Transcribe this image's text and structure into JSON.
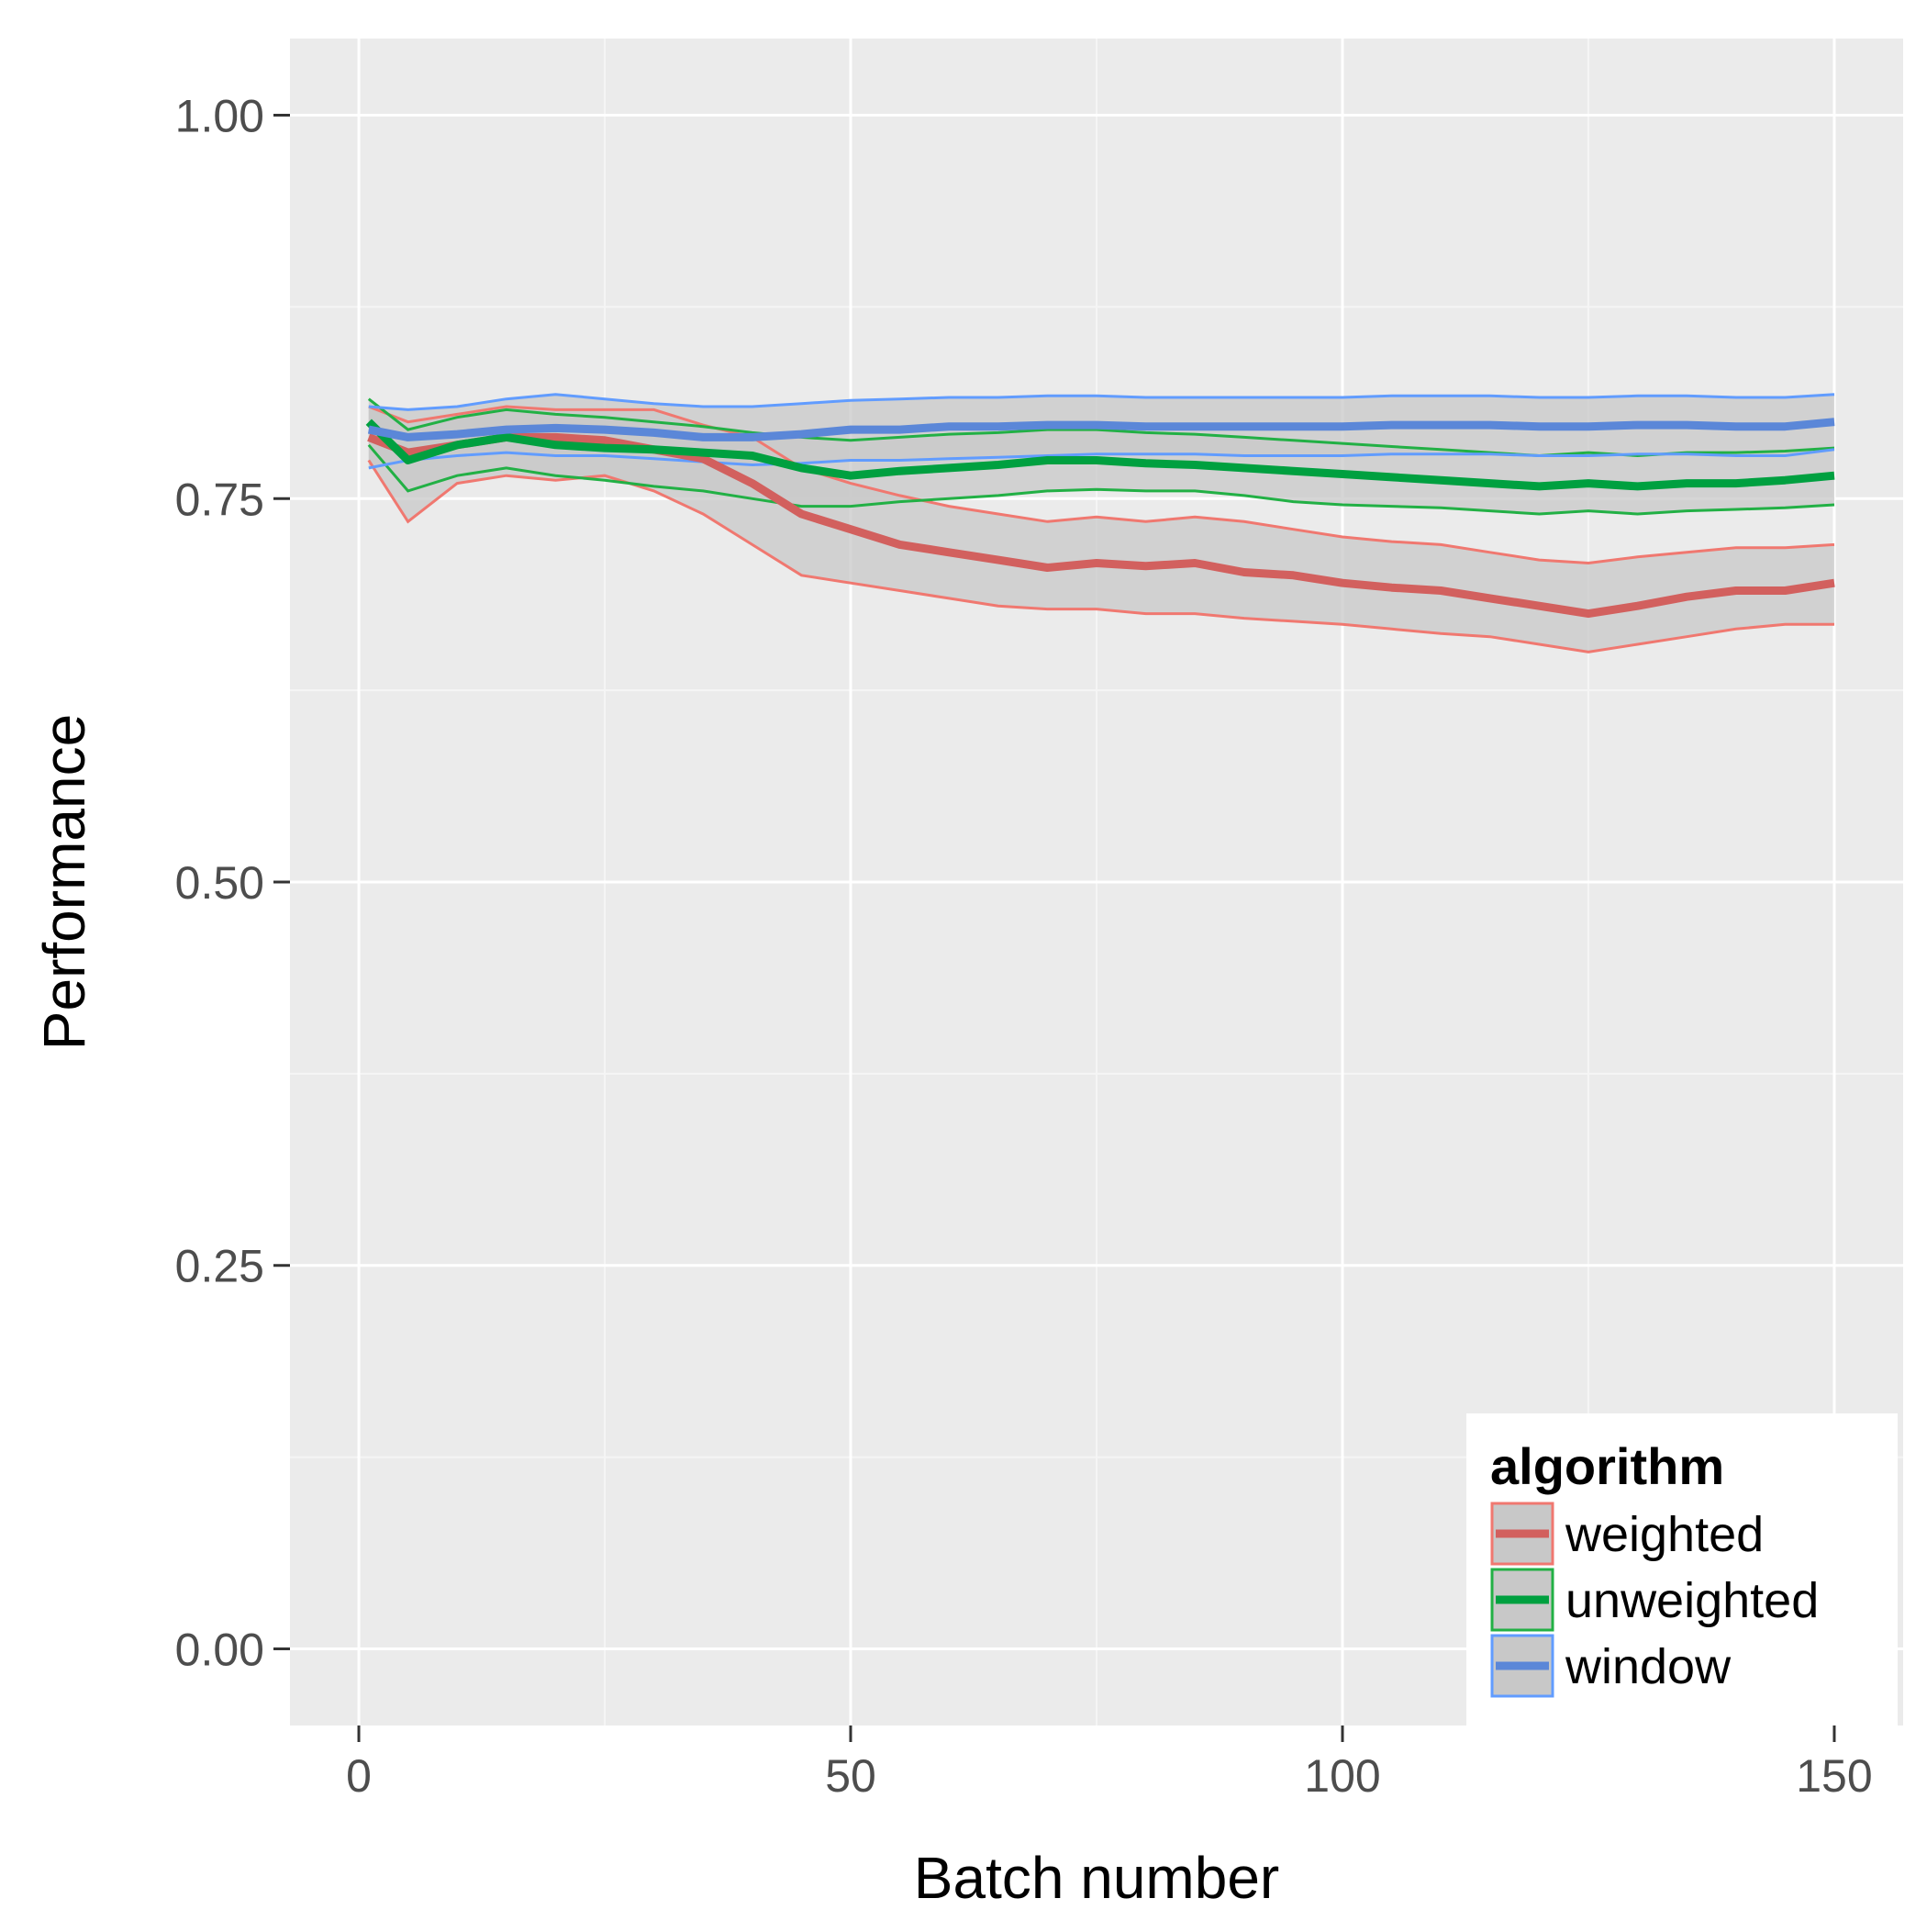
{
  "chart_data": {
    "type": "line",
    "xlabel": "Batch number",
    "ylabel": "Performance",
    "xlim": [
      -7,
      157
    ],
    "ylim": [
      -0.05,
      1.05
    ],
    "xticks": [
      0,
      50,
      100,
      150
    ],
    "xtick_labels": [
      "0",
      "50",
      "100",
      "150"
    ],
    "yticks": [
      0.0,
      0.25,
      0.5,
      0.75,
      1.0
    ],
    "ytick_labels": [
      "0.00",
      "0.25",
      "0.50",
      "0.75",
      "1.00"
    ],
    "grid": true,
    "legend": {
      "title": "algorithm",
      "placement": "bottom-right",
      "entries": [
        "weighted",
        "unweighted",
        "window"
      ]
    },
    "series": [
      {
        "name": "weighted",
        "color": "#d2605e",
        "band_color": "#f07870",
        "x": [
          1,
          5,
          10,
          15,
          20,
          25,
          30,
          35,
          40,
          45,
          50,
          55,
          60,
          65,
          70,
          75,
          80,
          85,
          90,
          95,
          100,
          105,
          110,
          115,
          120,
          125,
          130,
          135,
          140,
          145,
          150
        ],
        "mean": [
          0.79,
          0.78,
          0.785,
          0.79,
          0.79,
          0.788,
          0.782,
          0.776,
          0.76,
          0.74,
          0.73,
          0.72,
          0.715,
          0.71,
          0.705,
          0.708,
          0.706,
          0.708,
          0.702,
          0.7,
          0.695,
          0.692,
          0.69,
          0.685,
          0.68,
          0.675,
          0.68,
          0.686,
          0.69,
          0.69,
          0.695
        ],
        "lower": [
          0.775,
          0.735,
          0.76,
          0.765,
          0.762,
          0.765,
          0.755,
          0.74,
          0.72,
          0.7,
          0.695,
          0.69,
          0.685,
          0.68,
          0.678,
          0.678,
          0.675,
          0.675,
          0.672,
          0.67,
          0.668,
          0.665,
          0.662,
          0.66,
          0.655,
          0.65,
          0.655,
          0.66,
          0.665,
          0.668,
          0.668
        ],
        "upper": [
          0.81,
          0.8,
          0.805,
          0.81,
          0.808,
          0.808,
          0.808,
          0.798,
          0.79,
          0.77,
          0.76,
          0.752,
          0.745,
          0.74,
          0.735,
          0.738,
          0.735,
          0.738,
          0.735,
          0.73,
          0.725,
          0.722,
          0.72,
          0.715,
          0.71,
          0.708,
          0.712,
          0.715,
          0.718,
          0.718,
          0.72
        ]
      },
      {
        "name": "unweighted",
        "color": "#00a040",
        "band_color": "#22b045",
        "x": [
          1,
          5,
          10,
          15,
          20,
          25,
          30,
          35,
          40,
          45,
          50,
          55,
          60,
          65,
          70,
          75,
          80,
          85,
          90,
          95,
          100,
          105,
          110,
          115,
          120,
          125,
          130,
          135,
          140,
          145,
          150
        ],
        "mean": [
          0.8,
          0.775,
          0.785,
          0.79,
          0.785,
          0.783,
          0.782,
          0.78,
          0.778,
          0.77,
          0.765,
          0.768,
          0.77,
          0.772,
          0.775,
          0.775,
          0.773,
          0.772,
          0.77,
          0.768,
          0.766,
          0.764,
          0.762,
          0.76,
          0.758,
          0.76,
          0.758,
          0.76,
          0.76,
          0.762,
          0.765
        ],
        "lower": [
          0.785,
          0.755,
          0.765,
          0.77,
          0.765,
          0.762,
          0.758,
          0.755,
          0.75,
          0.745,
          0.745,
          0.748,
          0.75,
          0.752,
          0.755,
          0.756,
          0.755,
          0.755,
          0.752,
          0.748,
          0.746,
          0.745,
          0.744,
          0.742,
          0.74,
          0.742,
          0.74,
          0.742,
          0.743,
          0.744,
          0.746
        ],
        "upper": [
          0.815,
          0.795,
          0.803,
          0.808,
          0.805,
          0.803,
          0.8,
          0.797,
          0.793,
          0.79,
          0.788,
          0.79,
          0.792,
          0.793,
          0.795,
          0.795,
          0.793,
          0.792,
          0.79,
          0.788,
          0.786,
          0.784,
          0.782,
          0.78,
          0.778,
          0.78,
          0.778,
          0.78,
          0.78,
          0.781,
          0.783
        ]
      },
      {
        "name": "window",
        "color": "#5b87d8",
        "band_color": "#619cff",
        "x": [
          1,
          5,
          10,
          15,
          20,
          25,
          30,
          35,
          40,
          45,
          50,
          55,
          60,
          65,
          70,
          75,
          80,
          85,
          90,
          95,
          100,
          105,
          110,
          115,
          120,
          125,
          130,
          135,
          140,
          145,
          150
        ],
        "mean": [
          0.795,
          0.79,
          0.792,
          0.795,
          0.796,
          0.795,
          0.793,
          0.79,
          0.79,
          0.792,
          0.795,
          0.795,
          0.797,
          0.797,
          0.798,
          0.798,
          0.797,
          0.797,
          0.797,
          0.797,
          0.797,
          0.798,
          0.798,
          0.798,
          0.797,
          0.797,
          0.798,
          0.798,
          0.797,
          0.797,
          0.8
        ],
        "lower": [
          0.77,
          0.775,
          0.778,
          0.78,
          0.778,
          0.778,
          0.776,
          0.774,
          0.772,
          0.773,
          0.775,
          0.775,
          0.776,
          0.777,
          0.778,
          0.779,
          0.779,
          0.779,
          0.778,
          0.778,
          0.778,
          0.779,
          0.779,
          0.779,
          0.778,
          0.778,
          0.779,
          0.779,
          0.778,
          0.778,
          0.782
        ],
        "upper": [
          0.81,
          0.808,
          0.81,
          0.815,
          0.818,
          0.815,
          0.812,
          0.81,
          0.81,
          0.812,
          0.814,
          0.815,
          0.816,
          0.816,
          0.817,
          0.817,
          0.816,
          0.816,
          0.816,
          0.816,
          0.816,
          0.817,
          0.817,
          0.817,
          0.816,
          0.816,
          0.817,
          0.817,
          0.816,
          0.816,
          0.818
        ]
      }
    ]
  }
}
